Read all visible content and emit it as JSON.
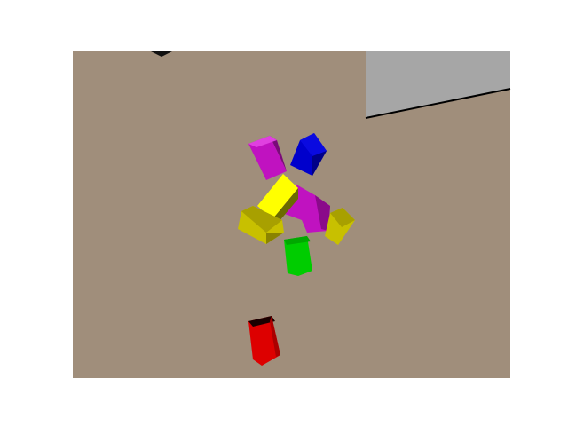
{
  "scene": {
    "background_color": "#ffffff",
    "floor_color": "#a08e7b",
    "wall_color": "#a6a6a6",
    "edge_color": "#000000",
    "objects": [
      {
        "name": "magenta-block-top",
        "color": "#c012c0"
      },
      {
        "name": "blue-block",
        "color": "#0000cc"
      },
      {
        "name": "yellow-block-center",
        "color": "#ffff00"
      },
      {
        "name": "magenta-block-center",
        "color": "#c012c0"
      },
      {
        "name": "olive-block-left",
        "color": "#c8c000"
      },
      {
        "name": "olive-block-right",
        "color": "#c8c000"
      },
      {
        "name": "green-block",
        "color": "#00cc00"
      },
      {
        "name": "red-block",
        "color": "#dd0000"
      }
    ]
  }
}
